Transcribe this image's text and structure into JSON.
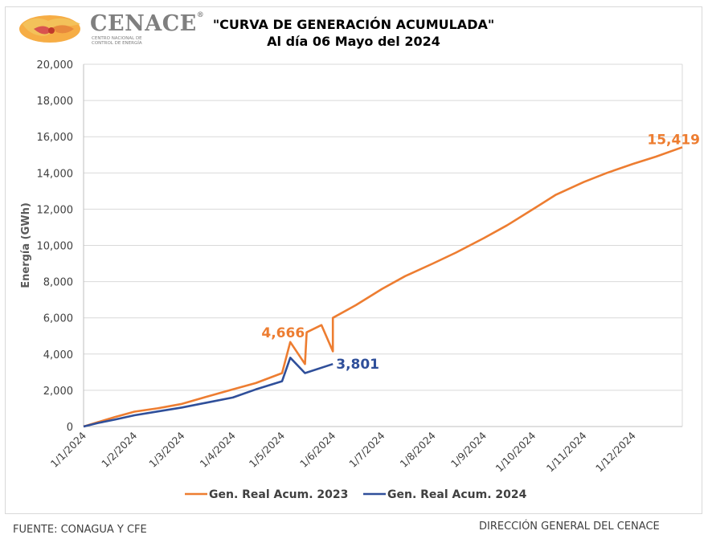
{
  "header": {
    "logo_text": "CENACE",
    "logo_registered": "®",
    "logo_subtitle": "CENTRO NACIONAL DE CONTROL DE ENERGÍA",
    "title_line1": "\"CURVA DE GENERACIÓN ACUMULADA\"",
    "title_line2": "Al día 06 Mayo del 2024"
  },
  "footer": {
    "source": "FUENTE: CONAGUA Y CFE",
    "author": "DIRECCIÓN GENERAL DEL CENACE"
  },
  "chart_data": {
    "type": "line",
    "title": "\"CURVA DE GENERACIÓN ACUMULADA\"",
    "subtitle": "Al día 06 Mayo del 2024",
    "xlabel": "",
    "ylabel": "Energía (GWh)",
    "ylim": [
      0,
      20000
    ],
    "yticks": [
      "0",
      "2,000",
      "4,000",
      "6,000",
      "8,000",
      "10,000",
      "12,000",
      "14,000",
      "16,000",
      "18,000",
      "20,000"
    ],
    "xlim": [
      "2024-01-01",
      "2024-12-31"
    ],
    "xticks": [
      "1/1/2024",
      "1/2/2024",
      "1/3/2024",
      "1/4/2024",
      "1/5/2024",
      "1/6/2024",
      "1/7/2024",
      "1/8/2024",
      "1/9/2024",
      "1/10/2024",
      "1/11/2024",
      "1/12/2024"
    ],
    "grid": true,
    "legend_position": "bottom",
    "series": [
      {
        "name": "Gen. Real Acum. 2023",
        "color": "#ed7d31",
        "end_label": "15,419",
        "mid_label": "4,666",
        "mid_label_at": "2024-05-06",
        "points": [
          [
            "2024-01-01",
            0
          ],
          [
            "2024-01-10",
            250
          ],
          [
            "2024-01-20",
            520
          ],
          [
            "2024-02-01",
            820
          ],
          [
            "2024-02-15",
            1000
          ],
          [
            "2024-03-01",
            1250
          ],
          [
            "2024-03-15",
            1620
          ],
          [
            "2024-04-01",
            2050
          ],
          [
            "2024-04-15",
            2400
          ],
          [
            "2024-05-01",
            2950
          ],
          [
            "2024-05-15",
            3450
          ],
          [
            "2024-06-01",
            4150
          ],
          [
            "2024-05-06",
            4666
          ],
          [
            "2024-05-16",
            5200
          ],
          [
            "2024-05-25",
            5600
          ],
          [
            "2024-06-01",
            6000
          ],
          [
            "2024-06-15",
            6700
          ],
          [
            "2024-07-01",
            7600
          ],
          [
            "2024-07-15",
            8300
          ],
          [
            "2024-08-01",
            9000
          ],
          [
            "2024-08-15",
            9600
          ],
          [
            "2024-09-01",
            10400
          ],
          [
            "2024-09-15",
            11100
          ],
          [
            "2024-10-01",
            12000
          ],
          [
            "2024-10-15",
            12800
          ],
          [
            "2024-11-01",
            13500
          ],
          [
            "2024-11-15",
            14000
          ],
          [
            "2024-12-01",
            14500
          ],
          [
            "2024-12-15",
            14900
          ],
          [
            "2024-12-31",
            15419
          ]
        ]
      },
      {
        "name": "Gen. Real Acum. 2024",
        "color": "#2f4f9a",
        "end_label": "3,801",
        "points": [
          [
            "2024-01-01",
            0
          ],
          [
            "2024-01-10",
            200
          ],
          [
            "2024-01-20",
            380
          ],
          [
            "2024-02-01",
            620
          ],
          [
            "2024-02-15",
            830
          ],
          [
            "2024-03-01",
            1050
          ],
          [
            "2024-03-15",
            1300
          ],
          [
            "2024-04-01",
            1600
          ],
          [
            "2024-04-15",
            2050
          ],
          [
            "2024-05-01",
            2500
          ],
          [
            "2024-05-15",
            2950
          ],
          [
            "2024-06-01",
            3450
          ],
          [
            "2024-05-06",
            3801
          ]
        ]
      }
    ]
  }
}
